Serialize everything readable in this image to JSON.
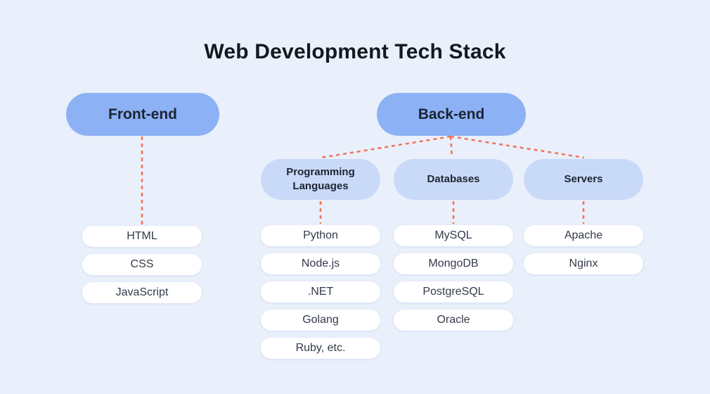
{
  "title": "Web Development Tech Stack",
  "colors": {
    "background": "#e9f0fb",
    "primary_pill": "#8db1f5",
    "category_pill": "#c9daf8",
    "item_pill": "#ffffff",
    "connector": "#f4745c",
    "title_text": "#14181f",
    "pill_text": "#1c2432",
    "item_text": "#333a49"
  },
  "tree": {
    "front_end": {
      "label": "Front-end",
      "items": [
        "HTML",
        "CSS",
        "JavaScript"
      ]
    },
    "back_end": {
      "label": "Back-end",
      "categories": [
        {
          "label": "Programming Languages",
          "items": [
            "Python",
            "Node.js",
            ".NET",
            "Golang",
            "Ruby, etc."
          ]
        },
        {
          "label": "Databases",
          "items": [
            "MySQL",
            "MongoDB",
            "PostgreSQL",
            "Oracle"
          ]
        },
        {
          "label": "Servers",
          "items": [
            "Apache",
            "Nginx"
          ]
        }
      ]
    }
  }
}
